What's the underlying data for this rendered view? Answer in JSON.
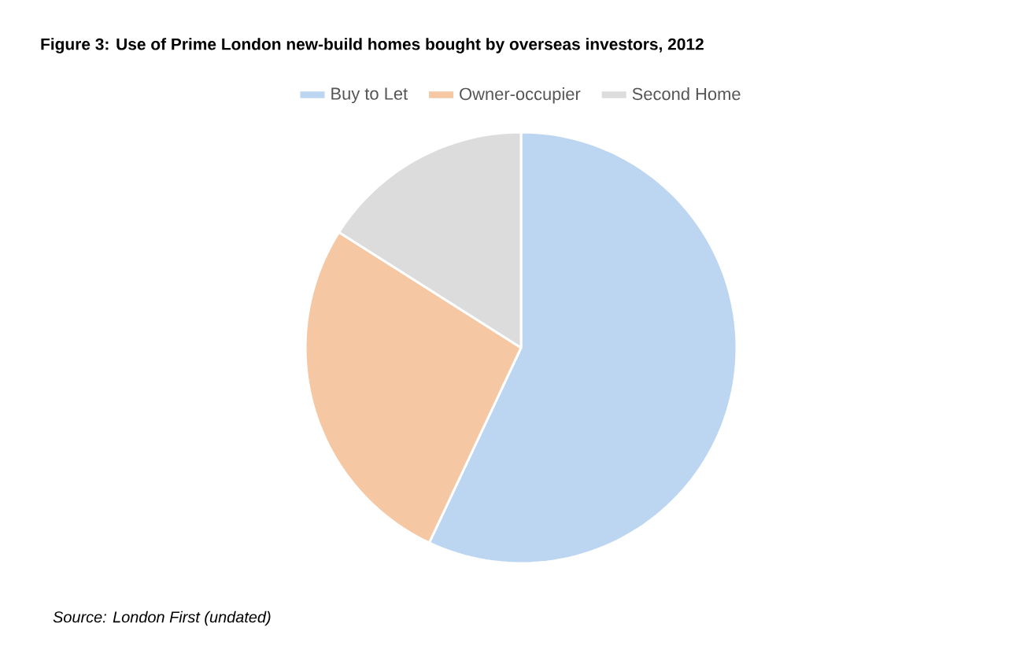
{
  "chart_data": {
    "type": "pie",
    "title": "Figure 3:  Use of Prime London new-build homes bought by overseas investors, 2012",
    "categories": [
      "Buy to Let",
      "Owner-occupier",
      "Second Home"
    ],
    "values": [
      57,
      27,
      16
    ],
    "colors": [
      "#bcd6f2",
      "#f5c7a3",
      "#dcdcdc"
    ],
    "legend": "top",
    "annotations": [
      "Source: London First (undated)"
    ]
  }
}
